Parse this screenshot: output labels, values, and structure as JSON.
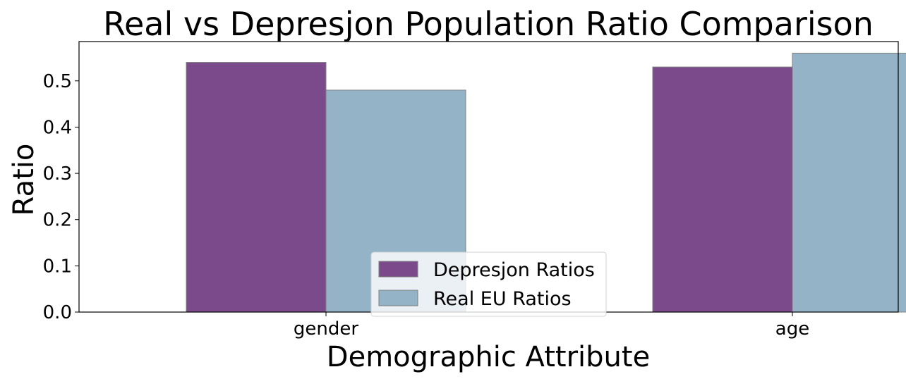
{
  "chart_data": {
    "type": "bar",
    "title": "Real vs Depresjon Population Ratio Comparison",
    "xlabel": "Demographic Attribute",
    "ylabel": "Ratio",
    "categories": [
      "gender",
      "age"
    ],
    "series": [
      {
        "name": "Depresjon Ratios",
        "values": [
          0.54,
          0.53
        ],
        "color": "#7b4a8a"
      },
      {
        "name": "Real EU Ratios",
        "values": [
          0.48,
          0.56
        ],
        "color": "#95b3c6"
      }
    ],
    "ylim": [
      0,
      0.585
    ],
    "yticks": [
      "0.0",
      "0.1",
      "0.2",
      "0.3",
      "0.4",
      "0.5"
    ],
    "grid": false,
    "legend_position": "bottom-center",
    "bar_edge_color": "#808080"
  }
}
